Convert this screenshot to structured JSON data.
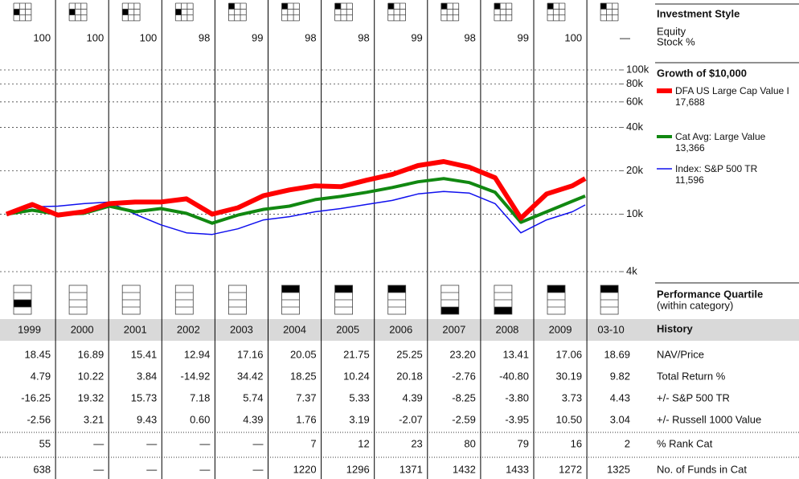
{
  "style_section": {
    "title": "Investment Style",
    "line1": "Equity",
    "line2": "Stock %"
  },
  "columns": [
    "1999",
    "2000",
    "2001",
    "2002",
    "2003",
    "2004",
    "2005",
    "2006",
    "2007",
    "2008",
    "2009",
    "03-10"
  ],
  "style_box": [
    3,
    3,
    3,
    3,
    0,
    0,
    0,
    0,
    0,
    0,
    0,
    0
  ],
  "stock_pct": [
    "100",
    "100",
    "100",
    "98",
    "99",
    "98",
    "98",
    "99",
    "98",
    "99",
    "100",
    "—"
  ],
  "chart_data": {
    "type": "line",
    "title": "Growth of $10,000",
    "x": [
      1999,
      1999.5,
      2000,
      2000.5,
      2001,
      2001.5,
      2002,
      2002.5,
      2003,
      2003.5,
      2004,
      2004.5,
      2005,
      2005.5,
      2006,
      2006.5,
      2007,
      2007.5,
      2008,
      2008.5,
      2009,
      2009.5,
      2010,
      2010.25
    ],
    "xlim": [
      1999,
      2010.25
    ],
    "ylim": [
      4000,
      100000
    ],
    "log_scale": true,
    "grid": true,
    "yticks": [
      {
        "value": 100000,
        "label": "100k"
      },
      {
        "value": 80000,
        "label": "80k"
      },
      {
        "value": 60000,
        "label": "60k"
      },
      {
        "value": 40000,
        "label": "40k"
      },
      {
        "value": 20000,
        "label": "20k"
      },
      {
        "value": 10000,
        "label": "10k"
      },
      {
        "value": 4000,
        "label": "4k"
      }
    ],
    "series": [
      {
        "name": "DFA US Large Cap Value I",
        "end_label": "17,688",
        "color": "#ff0000",
        "line_width": 6,
        "values": [
          10000,
          11680,
          9870,
          10400,
          11830,
          12140,
          12140,
          12790,
          10000,
          11090,
          13460,
          14740,
          15730,
          15520,
          17220,
          18850,
          21740,
          23170,
          21170,
          17900,
          9370,
          13820,
          15730,
          17690
        ]
      },
      {
        "name": "Cat Avg: Large Value",
        "end_label": "13,366",
        "color": "#118811",
        "line_width": 4,
        "values": [
          10000,
          10670,
          10000,
          10130,
          11380,
          10400,
          10950,
          10130,
          8670,
          9870,
          10810,
          11380,
          12620,
          13290,
          14180,
          15320,
          16770,
          17670,
          16560,
          14180,
          8790,
          10400,
          12300,
          13370
        ]
      },
      {
        "name": "Index: S&P 500 TR",
        "end_label": "11,596",
        "color": "#1010ee",
        "line_width": 1.5,
        "values": [
          10000,
          11240,
          11380,
          11830,
          12140,
          10000,
          8450,
          7430,
          7240,
          7920,
          9130,
          9620,
          10400,
          10950,
          11680,
          12460,
          13820,
          14370,
          14000,
          11830,
          7430,
          9130,
          10400,
          11600
        ]
      }
    ]
  },
  "quartile_section": {
    "title": "Performance Quartile",
    "subtitle": "(within category)"
  },
  "quartile": [
    3,
    null,
    null,
    null,
    null,
    1,
    1,
    1,
    4,
    4,
    1,
    1
  ],
  "history": {
    "title": "History",
    "rows": [
      {
        "label": "NAV/Price",
        "values": [
          "18.45",
          "16.89",
          "15.41",
          "12.94",
          "17.16",
          "20.05",
          "21.75",
          "25.25",
          "23.20",
          "13.41",
          "17.06",
          "18.69"
        ]
      },
      {
        "label": "Total Return %",
        "values": [
          "4.79",
          "10.22",
          "3.84",
          "-14.92",
          "34.42",
          "18.25",
          "10.24",
          "20.18",
          "-2.76",
          "-40.80",
          "30.19",
          "9.82"
        ]
      },
      {
        "label": "+/- S&P 500 TR",
        "values": [
          "-16.25",
          "19.32",
          "15.73",
          "7.18",
          "5.74",
          "7.37",
          "5.33",
          "4.39",
          "-8.25",
          "-3.80",
          "3.73",
          "4.43"
        ]
      },
      {
        "label": "+/- Russell 1000 Value",
        "values": [
          "-2.56",
          "3.21",
          "9.43",
          "0.60",
          "4.39",
          "1.76",
          "3.19",
          "-2.07",
          "-2.59",
          "-3.95",
          "10.50",
          "3.04"
        ]
      },
      {
        "label": "% Rank Cat",
        "values": [
          "55",
          "—",
          "—",
          "—",
          "—",
          "7",
          "12",
          "23",
          "80",
          "79",
          "16",
          "2"
        ]
      },
      {
        "label": "No. of Funds in Cat",
        "values": [
          "638",
          "—",
          "—",
          "—",
          "—",
          "1220",
          "1296",
          "1371",
          "1432",
          "1433",
          "1272",
          "1325"
        ]
      }
    ]
  }
}
